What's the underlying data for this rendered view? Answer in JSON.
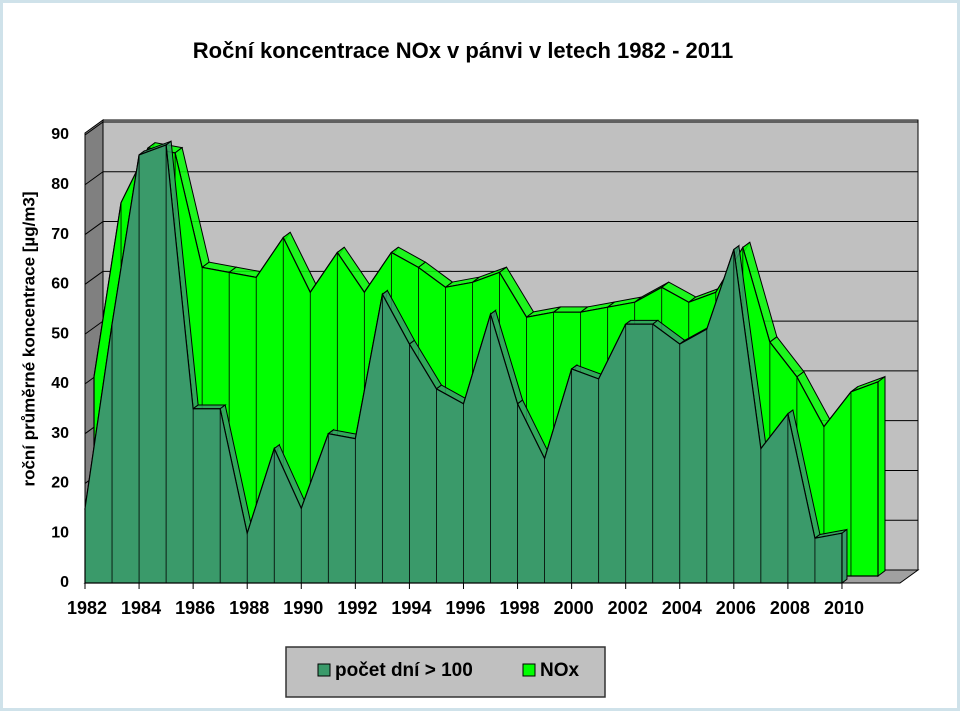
{
  "chart_data": {
    "type": "area3d",
    "title": "Roční koncentrace NOx v pánvi v letech 1982 - 2011",
    "y_label": "roční průměrné koncentrace [µg/m3]",
    "x": [
      1982,
      1983,
      1984,
      1985,
      1986,
      1987,
      1988,
      1989,
      1990,
      1991,
      1992,
      1993,
      1994,
      1995,
      1996,
      1997,
      1998,
      1999,
      2000,
      2001,
      2002,
      2003,
      2004,
      2005,
      2006,
      2007,
      2008,
      2009,
      2010,
      2011
    ],
    "xlim": [
      1982,
      2011
    ],
    "xticks": [
      1982,
      1984,
      1986,
      1988,
      1990,
      1992,
      1994,
      1996,
      1998,
      2000,
      2002,
      2004,
      2006,
      2008,
      2010
    ],
    "ylim": [
      0,
      90
    ],
    "yticks": [
      0,
      10,
      20,
      30,
      40,
      50,
      60,
      70,
      80,
      90
    ],
    "grid": true,
    "legend": "bottom",
    "series": [
      {
        "name": "počet dní > 100",
        "color": "#3a9a6a",
        "values": [
          15,
          52,
          86,
          88,
          35,
          35,
          10,
          27,
          15,
          30,
          29,
          58,
          48,
          39,
          36,
          54,
          36,
          25,
          43,
          41,
          52,
          52,
          48,
          51,
          67,
          27,
          34,
          9,
          10,
          null
        ]
      },
      {
        "name": "NOx",
        "color": "#00ff00",
        "values": [
          40,
          75,
          86,
          85,
          62,
          61,
          60,
          68,
          57,
          65,
          57,
          65,
          62,
          58,
          59,
          61,
          52,
          53,
          53,
          54,
          55,
          58,
          55,
          57,
          66,
          47,
          40,
          30,
          37,
          39
        ]
      }
    ]
  }
}
